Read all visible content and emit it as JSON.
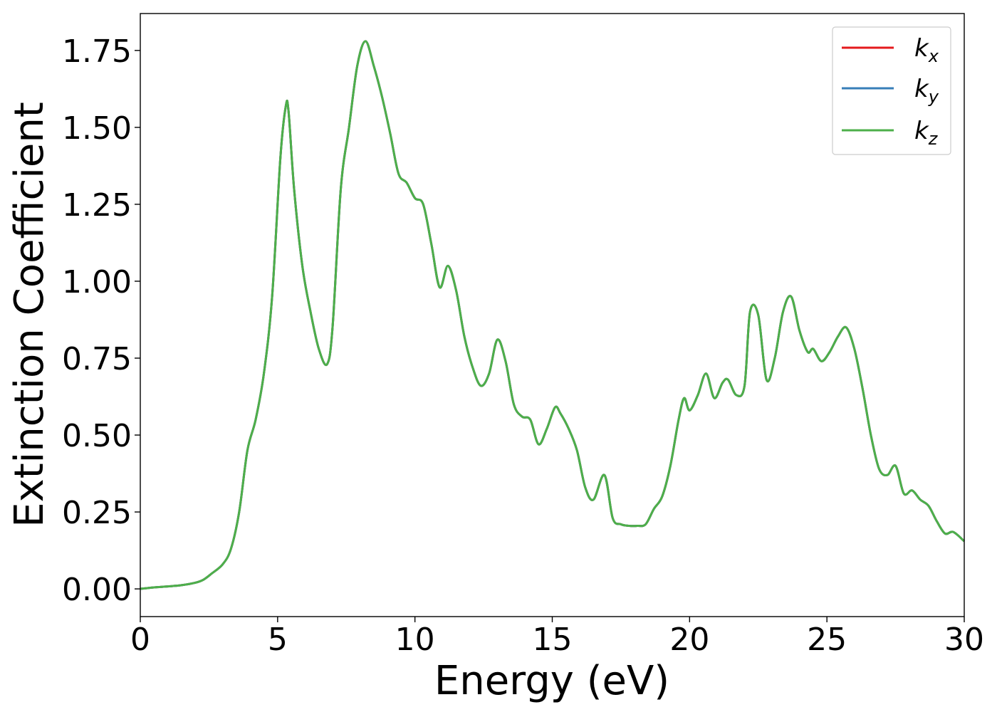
{
  "chart_data": {
    "type": "line",
    "xlabel": "Energy (eV)",
    "ylabel": "Extinction Coefficient",
    "xlim": [
      0,
      30
    ],
    "ylim": [
      -0.09,
      1.87
    ],
    "xticks": [
      0,
      5,
      10,
      15,
      20,
      25,
      30
    ],
    "yticks": [
      0.0,
      0.25,
      0.5,
      0.75,
      1.0,
      1.25,
      1.5,
      1.75
    ],
    "xtick_labels": [
      "0",
      "5",
      "10",
      "15",
      "20",
      "25",
      "30"
    ],
    "ytick_labels": [
      "0.00",
      "0.25",
      "0.50",
      "0.75",
      "1.00",
      "1.25",
      "1.50",
      "1.75"
    ],
    "grid": false,
    "legend_position": "top-right",
    "x": [
      0.0,
      0.5,
      1.0,
      1.5,
      2.0,
      2.3,
      2.6,
      3.0,
      3.3,
      3.6,
      3.9,
      4.2,
      4.5,
      4.8,
      5.1,
      5.3,
      5.4,
      5.6,
      5.9,
      6.2,
      6.5,
      6.8,
      7.0,
      7.3,
      7.6,
      7.9,
      8.2,
      8.5,
      8.8,
      9.1,
      9.4,
      9.7,
      10.0,
      10.3,
      10.6,
      10.9,
      11.2,
      11.5,
      11.8,
      12.1,
      12.4,
      12.7,
      13.0,
      13.3,
      13.6,
      13.9,
      14.2,
      14.5,
      14.8,
      15.1,
      15.3,
      15.6,
      15.9,
      16.2,
      16.5,
      16.9,
      17.2,
      17.5,
      17.8,
      18.1,
      18.4,
      18.7,
      19.0,
      19.3,
      19.6,
      19.8,
      20.0,
      20.3,
      20.6,
      20.9,
      21.2,
      21.4,
      21.7,
      22.0,
      22.2,
      22.5,
      22.8,
      23.1,
      23.4,
      23.7,
      24.0,
      24.3,
      24.5,
      24.8,
      25.1,
      25.4,
      25.7,
      26.0,
      26.3,
      26.6,
      26.9,
      27.2,
      27.5,
      27.8,
      28.1,
      28.4,
      28.7,
      29.0,
      29.3,
      29.6,
      30.0
    ],
    "series": [
      {
        "name": "k",
        "subscript": "x",
        "color": "#e41a1c",
        "values": [
          0.0,
          0.005,
          0.008,
          0.012,
          0.02,
          0.03,
          0.05,
          0.08,
          0.13,
          0.25,
          0.45,
          0.55,
          0.7,
          0.95,
          1.4,
          1.57,
          1.55,
          1.3,
          1.05,
          0.9,
          0.78,
          0.73,
          0.85,
          1.3,
          1.5,
          1.7,
          1.78,
          1.7,
          1.6,
          1.48,
          1.35,
          1.32,
          1.27,
          1.25,
          1.12,
          0.98,
          1.05,
          0.97,
          0.82,
          0.72,
          0.66,
          0.7,
          0.81,
          0.74,
          0.6,
          0.56,
          0.55,
          0.47,
          0.52,
          0.59,
          0.57,
          0.52,
          0.45,
          0.33,
          0.29,
          0.37,
          0.23,
          0.21,
          0.205,
          0.205,
          0.21,
          0.26,
          0.3,
          0.4,
          0.55,
          0.62,
          0.58,
          0.63,
          0.7,
          0.62,
          0.67,
          0.68,
          0.63,
          0.66,
          0.9,
          0.89,
          0.68,
          0.75,
          0.9,
          0.95,
          0.84,
          0.77,
          0.78,
          0.74,
          0.77,
          0.82,
          0.85,
          0.78,
          0.65,
          0.5,
          0.39,
          0.37,
          0.4,
          0.31,
          0.32,
          0.29,
          0.27,
          0.22,
          0.18,
          0.185,
          0.155
        ]
      },
      {
        "name": "k",
        "subscript": "y",
        "color": "#377eb8",
        "values": [
          0.0,
          0.005,
          0.008,
          0.012,
          0.02,
          0.03,
          0.05,
          0.08,
          0.13,
          0.25,
          0.45,
          0.55,
          0.7,
          0.95,
          1.4,
          1.57,
          1.55,
          1.3,
          1.05,
          0.9,
          0.78,
          0.73,
          0.85,
          1.3,
          1.5,
          1.7,
          1.78,
          1.7,
          1.6,
          1.48,
          1.35,
          1.32,
          1.27,
          1.25,
          1.12,
          0.98,
          1.05,
          0.97,
          0.82,
          0.72,
          0.66,
          0.7,
          0.81,
          0.74,
          0.6,
          0.56,
          0.55,
          0.47,
          0.52,
          0.59,
          0.57,
          0.52,
          0.45,
          0.33,
          0.29,
          0.37,
          0.23,
          0.21,
          0.205,
          0.205,
          0.21,
          0.26,
          0.3,
          0.4,
          0.55,
          0.62,
          0.58,
          0.63,
          0.7,
          0.62,
          0.67,
          0.68,
          0.63,
          0.66,
          0.9,
          0.89,
          0.68,
          0.75,
          0.9,
          0.95,
          0.84,
          0.77,
          0.78,
          0.74,
          0.77,
          0.82,
          0.85,
          0.78,
          0.65,
          0.5,
          0.39,
          0.37,
          0.4,
          0.31,
          0.32,
          0.29,
          0.27,
          0.22,
          0.18,
          0.185,
          0.155
        ]
      },
      {
        "name": "k",
        "subscript": "z",
        "color": "#4daf4a",
        "values": [
          0.0,
          0.005,
          0.008,
          0.012,
          0.02,
          0.03,
          0.05,
          0.08,
          0.13,
          0.25,
          0.45,
          0.55,
          0.7,
          0.95,
          1.4,
          1.57,
          1.55,
          1.3,
          1.05,
          0.9,
          0.78,
          0.73,
          0.85,
          1.3,
          1.5,
          1.7,
          1.78,
          1.7,
          1.6,
          1.48,
          1.35,
          1.32,
          1.27,
          1.25,
          1.12,
          0.98,
          1.05,
          0.97,
          0.82,
          0.72,
          0.66,
          0.7,
          0.81,
          0.74,
          0.6,
          0.56,
          0.55,
          0.47,
          0.52,
          0.59,
          0.57,
          0.52,
          0.45,
          0.33,
          0.29,
          0.37,
          0.23,
          0.21,
          0.205,
          0.205,
          0.21,
          0.26,
          0.3,
          0.4,
          0.55,
          0.62,
          0.58,
          0.63,
          0.7,
          0.62,
          0.67,
          0.68,
          0.63,
          0.66,
          0.9,
          0.89,
          0.68,
          0.75,
          0.9,
          0.95,
          0.84,
          0.77,
          0.78,
          0.74,
          0.77,
          0.82,
          0.85,
          0.78,
          0.65,
          0.5,
          0.39,
          0.37,
          0.4,
          0.31,
          0.32,
          0.29,
          0.27,
          0.22,
          0.18,
          0.185,
          0.155
        ]
      }
    ]
  }
}
